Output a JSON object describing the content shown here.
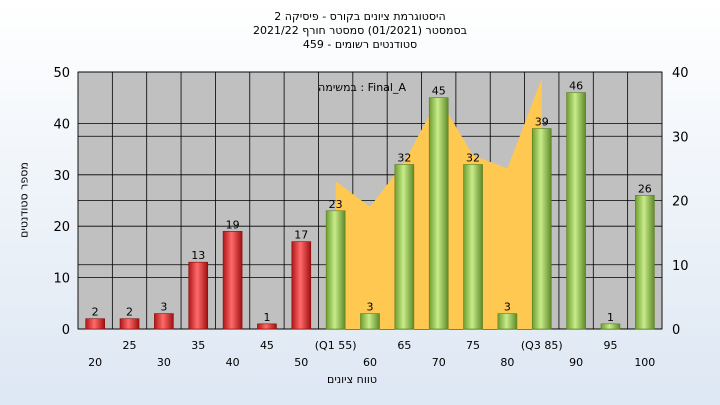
{
  "chart_data": {
    "type": "bar",
    "title": [
      "היסטוגרמת ציונים בקורס - פיסיקה 2",
      "בסמסטר (01/2021) סמסטר חורף 2021/22",
      "סטודנטים רשומים - 459"
    ],
    "xlabel": "טווח ציונים",
    "ylabel": "מספר סטודנטים",
    "annotation": "במשימה : Final_A",
    "x_ticks_upper": [
      "25",
      "35",
      "45",
      "(Q1 55)",
      "65",
      "75",
      "(Q3 85)",
      "95"
    ],
    "x_ticks_lower": [
      "20",
      "30",
      "40",
      "50",
      "60",
      "70",
      "80",
      "90",
      "100"
    ],
    "categories": [
      "20",
      "25",
      "30",
      "35",
      "40",
      "45",
      "50",
      "55",
      "60",
      "65",
      "70",
      "75",
      "80",
      "85",
      "90",
      "95",
      "100"
    ],
    "values": [
      2,
      2,
      3,
      13,
      19,
      1,
      17,
      23,
      3,
      32,
      45,
      32,
      3,
      39,
      46,
      1,
      26
    ],
    "bar_colors": [
      "red",
      "red",
      "red",
      "red",
      "red",
      "red",
      "red",
      "green",
      "green",
      "green",
      "green",
      "green",
      "green",
      "green",
      "green",
      "green",
      "green"
    ],
    "ylim": [
      0,
      50
    ],
    "y_ticks": [
      0,
      10,
      20,
      30,
      40,
      50
    ],
    "y2lim": [
      0,
      40
    ],
    "y2_ticks": [
      0,
      10,
      20,
      30,
      40
    ],
    "area_series": {
      "x": [
        55,
        60,
        65,
        70,
        75,
        80,
        85
      ],
      "values": [
        23,
        19,
        26,
        36,
        27,
        25,
        39
      ]
    },
    "colors": {
      "red": "#e03030",
      "green": "#8fc04a",
      "area": "#ffc850",
      "plot_bg": "#c0c0c0"
    }
  }
}
